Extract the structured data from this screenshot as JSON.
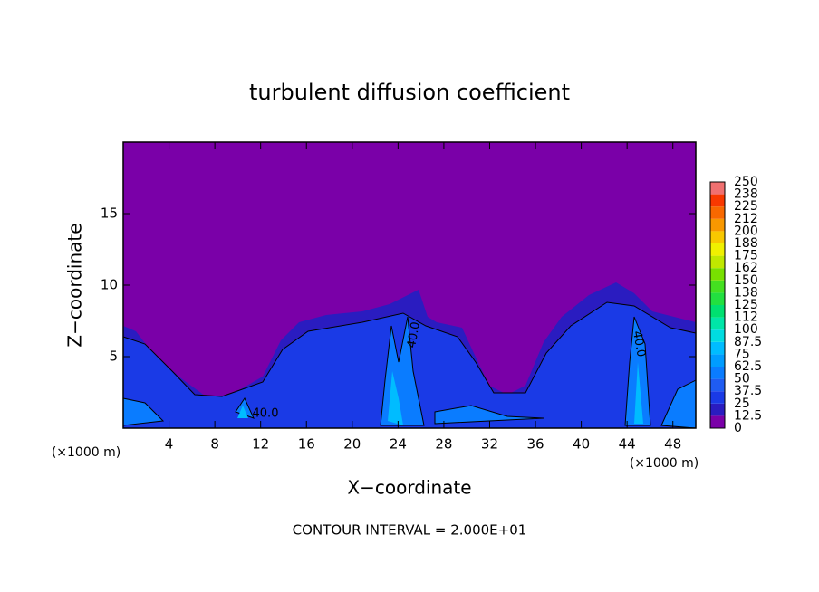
{
  "chart_data": {
    "type": "contour",
    "title": "turbulent diffusion coefficient",
    "x_label": "X−coordinate",
    "y_label": "Z−coordinate",
    "x_units": "(×1000 m)",
    "y_units": "(×1000 m)",
    "footnote": "CONTOUR INTERVAL = 2.000E+01",
    "xlim": [
      0,
      50
    ],
    "xticks": [
      4,
      8,
      12,
      16,
      20,
      24,
      28,
      32,
      36,
      40,
      44,
      48
    ],
    "ylim": [
      0,
      20
    ],
    "yticks": [
      5,
      10,
      15
    ],
    "contour_labels": [
      "40.0",
      "40.0",
      "40.0"
    ],
    "colorbar": {
      "levels": [
        0,
        12.5,
        25,
        37.5,
        50,
        62.5,
        75,
        87.5,
        100,
        112,
        125,
        138,
        150,
        162,
        175,
        188,
        200,
        212,
        225,
        238,
        250
      ],
      "colors": [
        "#7a00a8",
        "#2a1cc0",
        "#1a3ae6",
        "#1f5cf2",
        "#0a7cff",
        "#009cff",
        "#00bcff",
        "#00dce0",
        "#00e6a8",
        "#00e070",
        "#22e040",
        "#44e020",
        "#78e000",
        "#c0e800",
        "#f0f000",
        "#f8c800",
        "#f89800",
        "#f86800",
        "#f83800",
        "#f07070"
      ]
    }
  }
}
